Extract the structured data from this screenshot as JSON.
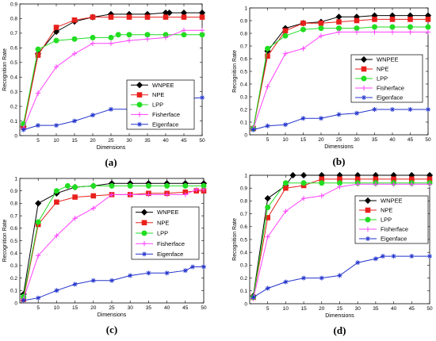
{
  "colors": {
    "WNPEE": "#000000",
    "NPE": "#e8201c",
    "LPP": "#22dd22",
    "Fisherface": "#ff44ff",
    "Eigenface": "#2233cc"
  },
  "chart_data": [
    {
      "type": "line",
      "caption": "(a)",
      "xlabel": "Dimensions",
      "ylabel": "Recognition Rate",
      "xlim": [
        0,
        50
      ],
      "ylim": [
        0,
        0.9
      ],
      "xticks": [
        "5",
        "10",
        "15",
        "20",
        "25",
        "30",
        "35",
        "40",
        "45",
        "50"
      ],
      "yticks": [
        "0",
        "0.1",
        "0.2",
        "0.3",
        "0.4",
        "0.5",
        "0.6",
        "0.7",
        "0.8",
        "0.9"
      ],
      "grid": false,
      "legend": "bottom-right",
      "series": [
        {
          "name": "WNPEE",
          "x": [
            1,
            5,
            10,
            15,
            20,
            25,
            30,
            35,
            40,
            41,
            45,
            50
          ],
          "y": [
            0.06,
            0.56,
            0.71,
            0.78,
            0.81,
            0.83,
            0.83,
            0.83,
            0.84,
            0.84,
            0.84,
            0.84
          ]
        },
        {
          "name": "NPE",
          "x": [
            1,
            5,
            10,
            15,
            20,
            25,
            30,
            35,
            40,
            45,
            50
          ],
          "y": [
            0.06,
            0.55,
            0.74,
            0.79,
            0.81,
            0.81,
            0.81,
            0.81,
            0.81,
            0.81,
            0.81
          ]
        },
        {
          "name": "LPP",
          "x": [
            1,
            5,
            10,
            15,
            20,
            25,
            27,
            30,
            35,
            40,
            45,
            50
          ],
          "y": [
            0.08,
            0.59,
            0.65,
            0.66,
            0.67,
            0.67,
            0.69,
            0.69,
            0.69,
            0.69,
            0.69,
            0.69
          ]
        },
        {
          "name": "Fisherface",
          "x": [
            1,
            5,
            10,
            15,
            20,
            25,
            30,
            35,
            40,
            45,
            50
          ],
          "y": [
            0.05,
            0.29,
            0.47,
            0.56,
            0.63,
            0.63,
            0.65,
            0.66,
            0.67,
            0.72,
            0.72
          ]
        },
        {
          "name": "Eigenface",
          "x": [
            1,
            5,
            10,
            15,
            20,
            25,
            30,
            35,
            40,
            45,
            50
          ],
          "y": [
            0.04,
            0.07,
            0.07,
            0.1,
            0.14,
            0.18,
            0.18,
            0.23,
            0.25,
            0.25,
            0.26
          ]
        }
      ]
    },
    {
      "type": "line",
      "caption": "(b)",
      "xlabel": "Dimensions",
      "ylabel": "Recognition Rate",
      "xlim": [
        0,
        50
      ],
      "ylim": [
        0,
        1
      ],
      "xticks": [
        "5",
        "10",
        "15",
        "20",
        "25",
        "30",
        "35",
        "40",
        "45",
        "50"
      ],
      "yticks": [
        "0",
        "0.1",
        "0.2",
        "0.3",
        "0.4",
        "0.5",
        "0.6",
        "0.7",
        "0.8",
        "0.9",
        "1"
      ],
      "grid": false,
      "legend": "right",
      "series": [
        {
          "name": "WNPEE",
          "x": [
            1,
            5,
            10,
            15,
            20,
            25,
            30,
            35,
            40,
            45,
            50
          ],
          "y": [
            0.05,
            0.66,
            0.84,
            0.88,
            0.89,
            0.93,
            0.93,
            0.94,
            0.94,
            0.94,
            0.94
          ]
        },
        {
          "name": "NPE",
          "x": [
            1,
            5,
            10,
            15,
            20,
            25,
            30,
            35,
            40,
            45,
            50
          ],
          "y": [
            0.05,
            0.62,
            0.82,
            0.88,
            0.88,
            0.89,
            0.9,
            0.91,
            0.91,
            0.91,
            0.91
          ]
        },
        {
          "name": "LPP",
          "x": [
            1,
            5,
            10,
            15,
            20,
            25,
            30,
            35,
            40,
            45,
            50
          ],
          "y": [
            0.05,
            0.68,
            0.78,
            0.83,
            0.84,
            0.84,
            0.84,
            0.85,
            0.85,
            0.85,
            0.85
          ]
        },
        {
          "name": "Fisherface",
          "x": [
            1,
            5,
            10,
            15,
            20,
            25,
            30,
            35,
            40,
            45,
            50
          ],
          "y": [
            0.05,
            0.38,
            0.64,
            0.68,
            0.78,
            0.81,
            0.81,
            0.81,
            0.81,
            0.81,
            0.81
          ]
        },
        {
          "name": "Eigenface",
          "x": [
            1,
            5,
            10,
            15,
            20,
            25,
            30,
            35,
            40,
            45,
            50
          ],
          "y": [
            0.04,
            0.07,
            0.08,
            0.13,
            0.13,
            0.16,
            0.17,
            0.2,
            0.2,
            0.2,
            0.2
          ]
        }
      ]
    },
    {
      "type": "line",
      "caption": "(c)",
      "xlabel": "Dimensions",
      "ylabel": "Recognition Rate",
      "xlim": [
        0,
        50
      ],
      "ylim": [
        0,
        1
      ],
      "xticks": [
        "5",
        "10",
        "15",
        "20",
        "25",
        "30",
        "35",
        "40",
        "45",
        "50"
      ],
      "yticks": [
        "0",
        "0.1",
        "0.2",
        "0.3",
        "0.4",
        "0.5",
        "0.6",
        "0.7",
        "0.8",
        "0.9",
        "1"
      ],
      "grid": false,
      "legend": "right",
      "series": [
        {
          "name": "WNPEE",
          "x": [
            1,
            5,
            10,
            15,
            20,
            25,
            30,
            35,
            40,
            45,
            50
          ],
          "y": [
            0.07,
            0.8,
            0.88,
            0.93,
            0.94,
            0.96,
            0.96,
            0.96,
            0.96,
            0.96,
            0.96
          ]
        },
        {
          "name": "NPE",
          "x": [
            1,
            5,
            10,
            15,
            20,
            25,
            30,
            35,
            40,
            45,
            48,
            50
          ],
          "y": [
            0.03,
            0.63,
            0.81,
            0.85,
            0.86,
            0.87,
            0.87,
            0.88,
            0.88,
            0.89,
            0.9,
            0.9
          ]
        },
        {
          "name": "LPP",
          "x": [
            1,
            5,
            10,
            13,
            15,
            20,
            25,
            30,
            35,
            40,
            45,
            50
          ],
          "y": [
            0.05,
            0.65,
            0.9,
            0.94,
            0.93,
            0.94,
            0.94,
            0.94,
            0.94,
            0.94,
            0.94,
            0.94
          ]
        },
        {
          "name": "Fisherface",
          "x": [
            1,
            5,
            10,
            15,
            20,
            25,
            30,
            35,
            40,
            45,
            48,
            50
          ],
          "y": [
            0.03,
            0.38,
            0.54,
            0.68,
            0.76,
            0.87,
            0.87,
            0.87,
            0.87,
            0.87,
            0.91,
            0.91
          ]
        },
        {
          "name": "Eigenface",
          "x": [
            1,
            5,
            10,
            15,
            20,
            25,
            30,
            35,
            40,
            45,
            47,
            50
          ],
          "y": [
            0.02,
            0.04,
            0.1,
            0.15,
            0.18,
            0.18,
            0.22,
            0.24,
            0.24,
            0.26,
            0.29,
            0.29
          ]
        }
      ]
    },
    {
      "type": "line",
      "caption": "(d)",
      "xlabel": "Dimensions",
      "ylabel": "Recognition Rate",
      "xlim": [
        0,
        50
      ],
      "ylim": [
        0,
        1
      ],
      "xticks": [
        "5",
        "10",
        "15",
        "20",
        "25",
        "30",
        "35",
        "40",
        "45",
        "50"
      ],
      "yticks": [
        "0",
        "0.1",
        "0.2",
        "0.3",
        "0.4",
        "0.5",
        "0.6",
        "0.7",
        "0.8",
        "0.9",
        "1"
      ],
      "grid": false,
      "legend": "right",
      "series": [
        {
          "name": "WNPEE",
          "x": [
            1,
            5,
            10,
            12,
            15,
            20,
            25,
            30,
            35,
            40,
            45,
            50
          ],
          "y": [
            0.06,
            0.82,
            0.92,
            1.0,
            1.0,
            1.0,
            1.0,
            1.0,
            1.0,
            1.0,
            1.0,
            1.0
          ]
        },
        {
          "name": "NPE",
          "x": [
            1,
            5,
            10,
            15,
            20,
            25,
            30,
            35,
            40,
            45,
            50
          ],
          "y": [
            0.05,
            0.67,
            0.9,
            0.92,
            0.97,
            0.97,
            0.97,
            0.97,
            0.97,
            0.97,
            0.97
          ]
        },
        {
          "name": "LPP",
          "x": [
            1,
            5,
            10,
            15,
            20,
            25,
            30,
            35,
            40,
            45,
            50
          ],
          "y": [
            0.05,
            0.75,
            0.94,
            0.94,
            0.94,
            0.94,
            0.94,
            0.94,
            0.94,
            0.94,
            0.94
          ]
        },
        {
          "name": "Fisherface",
          "x": [
            1,
            5,
            10,
            15,
            20,
            25,
            30,
            35,
            40,
            45,
            50
          ],
          "y": [
            0.04,
            0.52,
            0.72,
            0.82,
            0.84,
            0.91,
            0.93,
            0.93,
            0.93,
            0.93,
            0.93
          ]
        },
        {
          "name": "Eigenface",
          "x": [
            1,
            5,
            10,
            15,
            20,
            25,
            30,
            35,
            37,
            40,
            45,
            50
          ],
          "y": [
            0.05,
            0.12,
            0.17,
            0.2,
            0.2,
            0.22,
            0.32,
            0.35,
            0.37,
            0.37,
            0.37,
            0.37
          ]
        }
      ]
    }
  ]
}
